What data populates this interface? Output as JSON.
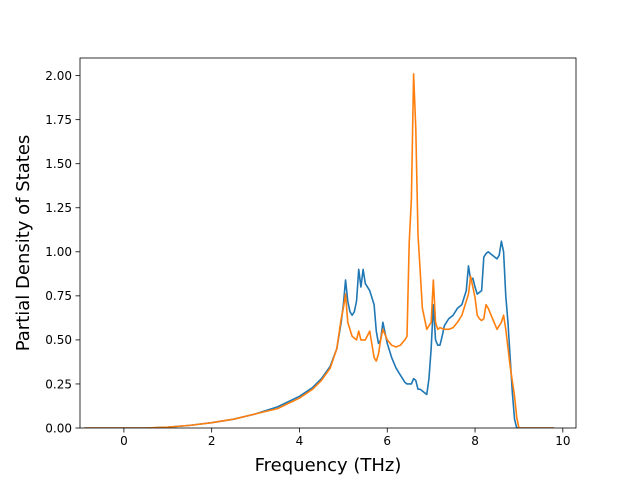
{
  "chart_data": {
    "type": "line",
    "title": "",
    "xlabel": "Frequency (THz)",
    "ylabel": "Partial Density of States",
    "xlim": [
      -1.0,
      10.3
    ],
    "ylim": [
      0.0,
      2.1
    ],
    "xticks": [
      0,
      2,
      4,
      6,
      8,
      10
    ],
    "yticks": [
      0.0,
      0.25,
      0.5,
      0.75,
      1.0,
      1.25,
      1.5,
      1.75,
      2.0
    ],
    "xtick_labels": [
      "0",
      "2",
      "4",
      "6",
      "8",
      "10"
    ],
    "ytick_labels": [
      "0.00",
      "0.25",
      "0.50",
      "0.75",
      "1.00",
      "1.25",
      "1.50",
      "1.75",
      "2.00"
    ],
    "grid": false,
    "series": [
      {
        "color": "#1f77b4",
        "x": [
          -0.9,
          0.0,
          0.5,
          1.0,
          1.5,
          2.0,
          2.5,
          3.0,
          3.5,
          4.0,
          4.3,
          4.5,
          4.7,
          4.85,
          4.95,
          5.0,
          5.05,
          5.1,
          5.15,
          5.2,
          5.25,
          5.3,
          5.35,
          5.4,
          5.45,
          5.5,
          5.6,
          5.7,
          5.75,
          5.8,
          5.85,
          5.9,
          6.0,
          6.1,
          6.2,
          6.3,
          6.4,
          6.45,
          6.5,
          6.55,
          6.6,
          6.65,
          6.7,
          6.75,
          6.8,
          6.85,
          6.9,
          6.95,
          7.0,
          7.05,
          7.1,
          7.15,
          7.2,
          7.25,
          7.3,
          7.4,
          7.5,
          7.6,
          7.7,
          7.8,
          7.85,
          7.9,
          7.95,
          8.0,
          8.05,
          8.1,
          8.15,
          8.2,
          8.25,
          8.3,
          8.35,
          8.4,
          8.5,
          8.55,
          8.6,
          8.65,
          8.7,
          8.75,
          8.8,
          8.85,
          8.9,
          8.95,
          9.0,
          9.2,
          9.5,
          9.8
        ],
        "y": [
          0.0,
          0.0,
          0.0,
          0.005,
          0.015,
          0.03,
          0.05,
          0.08,
          0.12,
          0.18,
          0.23,
          0.28,
          0.35,
          0.45,
          0.6,
          0.7,
          0.84,
          0.72,
          0.66,
          0.64,
          0.66,
          0.72,
          0.9,
          0.8,
          0.9,
          0.82,
          0.78,
          0.7,
          0.55,
          0.48,
          0.5,
          0.6,
          0.48,
          0.4,
          0.34,
          0.3,
          0.26,
          0.25,
          0.25,
          0.25,
          0.28,
          0.27,
          0.22,
          0.22,
          0.21,
          0.2,
          0.19,
          0.28,
          0.45,
          0.7,
          0.5,
          0.47,
          0.47,
          0.52,
          0.58,
          0.62,
          0.64,
          0.68,
          0.7,
          0.78,
          0.92,
          0.84,
          0.85,
          0.8,
          0.76,
          0.77,
          0.78,
          0.97,
          0.99,
          1.0,
          0.99,
          0.98,
          0.96,
          0.98,
          1.06,
          1.0,
          0.75,
          0.6,
          0.4,
          0.2,
          0.05,
          0.0,
          0.0,
          0.0,
          0.0,
          0.0
        ]
      },
      {
        "color": "#ff7f0e",
        "x": [
          -0.9,
          0.0,
          0.5,
          1.0,
          1.5,
          2.0,
          2.5,
          3.0,
          3.5,
          4.0,
          4.3,
          4.5,
          4.7,
          4.85,
          4.95,
          5.0,
          5.05,
          5.1,
          5.2,
          5.3,
          5.35,
          5.4,
          5.5,
          5.6,
          5.7,
          5.75,
          5.8,
          5.85,
          5.9,
          6.0,
          6.1,
          6.2,
          6.3,
          6.4,
          6.45,
          6.5,
          6.55,
          6.6,
          6.65,
          6.7,
          6.8,
          6.9,
          7.0,
          7.05,
          7.1,
          7.15,
          7.2,
          7.3,
          7.4,
          7.5,
          7.6,
          7.7,
          7.8,
          7.85,
          7.9,
          7.95,
          8.0,
          8.05,
          8.1,
          8.15,
          8.2,
          8.25,
          8.3,
          8.4,
          8.5,
          8.6,
          8.65,
          8.7,
          8.8,
          8.9,
          8.95,
          9.0,
          9.2,
          9.5,
          9.8
        ],
        "y": [
          0.0,
          0.0,
          0.0,
          0.005,
          0.015,
          0.03,
          0.05,
          0.08,
          0.11,
          0.17,
          0.22,
          0.27,
          0.34,
          0.45,
          0.62,
          0.68,
          0.76,
          0.6,
          0.52,
          0.5,
          0.55,
          0.5,
          0.5,
          0.55,
          0.4,
          0.38,
          0.42,
          0.5,
          0.56,
          0.5,
          0.47,
          0.46,
          0.47,
          0.5,
          0.52,
          1.05,
          1.3,
          2.01,
          1.7,
          1.1,
          0.68,
          0.56,
          0.6,
          0.84,
          0.6,
          0.56,
          0.57,
          0.56,
          0.56,
          0.57,
          0.6,
          0.64,
          0.72,
          0.76,
          0.86,
          0.8,
          0.74,
          0.64,
          0.62,
          0.61,
          0.62,
          0.7,
          0.68,
          0.62,
          0.56,
          0.6,
          0.64,
          0.56,
          0.35,
          0.18,
          0.06,
          0.0,
          0.0,
          0.0,
          0.0
        ]
      }
    ]
  }
}
